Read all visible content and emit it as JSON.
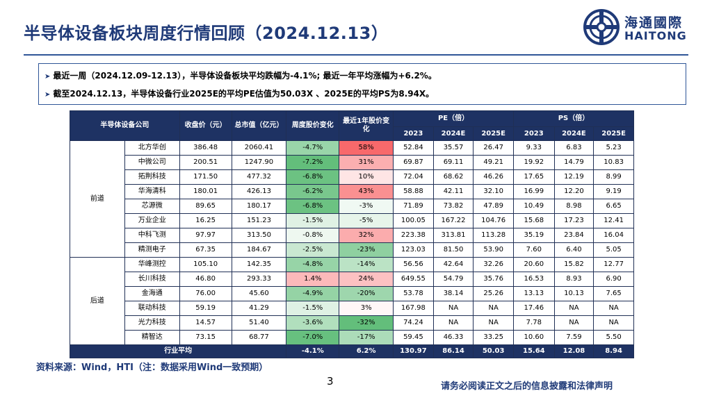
{
  "title": "半导体设备板块周度行情回顾（2024.12.13）",
  "logo": {
    "cn": "海通國際",
    "en": "HAITONG"
  },
  "summary": [
    "最近一周（2024.12.09-12.13），半导体设备板块平均跌幅为-4.1%;  最近一年平均涨幅为+6.2%。",
    "截至2024.12.13，半导体设备行业2025E的平均PE估值为50.03X 、2025E的平均PS为8.94X。"
  ],
  "table": {
    "header": {
      "company": "半导体设备公司",
      "close": "收盘价（元）",
      "mcap": "总市值（亿元）",
      "week_chg": "周度股价变化",
      "year_chg": "最近1年股价变化",
      "pe": "PE（倍）",
      "ps": "PS（倍）",
      "years": [
        "2023",
        "2024E",
        "2025E"
      ]
    },
    "groups": [
      {
        "name": "前道",
        "rows": [
          {
            "company": "北方华创",
            "close": "386.48",
            "mcap": "2060.41",
            "week": "-4.7%",
            "year": "58%",
            "pe": [
              "52.84",
              "35.57",
              "26.47"
            ],
            "ps": [
              "9.33",
              "6.83",
              "5.23"
            ]
          },
          {
            "company": "中微公司",
            "close": "200.51",
            "mcap": "1247.90",
            "week": "-7.2%",
            "year": "31%",
            "pe": [
              "69.87",
              "69.11",
              "49.21"
            ],
            "ps": [
              "19.92",
              "14.79",
              "10.83"
            ]
          },
          {
            "company": "拓荆科技",
            "close": "171.50",
            "mcap": "477.32",
            "week": "-6.8%",
            "year": "10%",
            "pe": [
              "72.04",
              "68.62",
              "46.26"
            ],
            "ps": [
              "17.65",
              "12.19",
              "8.99"
            ]
          },
          {
            "company": "华海清科",
            "close": "180.01",
            "mcap": "426.13",
            "week": "-6.2%",
            "year": "43%",
            "pe": [
              "58.88",
              "42.11",
              "32.10"
            ],
            "ps": [
              "16.99",
              "12.20",
              "9.19"
            ]
          },
          {
            "company": "芯源微",
            "close": "89.65",
            "mcap": "180.17",
            "week": "-6.8%",
            "year": "-3%",
            "pe": [
              "71.89",
              "73.82",
              "47.89"
            ],
            "ps": [
              "10.49",
              "8.98",
              "6.65"
            ]
          },
          {
            "company": "万业企业",
            "close": "16.25",
            "mcap": "151.23",
            "week": "-1.5%",
            "year": "-5%",
            "pe": [
              "100.05",
              "167.22",
              "104.76"
            ],
            "ps": [
              "15.68",
              "17.23",
              "12.41"
            ]
          },
          {
            "company": "中科飞测",
            "close": "97.97",
            "mcap": "313.50",
            "week": "-0.8%",
            "year": "32%",
            "pe": [
              "223.38",
              "313.81",
              "113.28"
            ],
            "ps": [
              "35.19",
              "23.84",
              "16.04"
            ]
          },
          {
            "company": "精测电子",
            "close": "67.35",
            "mcap": "184.67",
            "week": "-2.5%",
            "year": "-23%",
            "pe": [
              "123.03",
              "81.50",
              "53.90"
            ],
            "ps": [
              "7.60",
              "6.40",
              "5.05"
            ]
          }
        ]
      },
      {
        "name": "后道",
        "rows": [
          {
            "company": "华峰测控",
            "close": "105.10",
            "mcap": "142.35",
            "week": "-4.8%",
            "year": "-14%",
            "pe": [
              "56.56",
              "42.64",
              "32.26"
            ],
            "ps": [
              "20.60",
              "15.82",
              "12.77"
            ]
          },
          {
            "company": "长川科技",
            "close": "46.80",
            "mcap": "293.33",
            "week": "1.4%",
            "year": "24%",
            "pe": [
              "649.55",
              "54.79",
              "35.76"
            ],
            "ps": [
              "16.53",
              "8.93",
              "6.90"
            ]
          },
          {
            "company": "金海通",
            "close": "76.00",
            "mcap": "45.60",
            "week": "-4.9%",
            "year": "-20%",
            "pe": [
              "53.78",
              "38.14",
              "25.26"
            ],
            "ps": [
              "13.13",
              "10.13",
              "7.65"
            ]
          },
          {
            "company": "联动科技",
            "close": "59.19",
            "mcap": "41.29",
            "week": "-1.5%",
            "year": "3%",
            "pe": [
              "167.98",
              "NA",
              "NA"
            ],
            "ps": [
              "17.46",
              "NA",
              "NA"
            ]
          },
          {
            "company": "光力科技",
            "close": "14.57",
            "mcap": "51.40",
            "week": "-3.6%",
            "year": "-32%",
            "pe": [
              "74.24",
              "NA",
              "NA"
            ],
            "ps": [
              "7.78",
              "NA",
              "NA"
            ]
          },
          {
            "company": "精智达",
            "close": "73.15",
            "mcap": "68.77",
            "week": "-7.0%",
            "year": "-17%",
            "pe": [
              "59.45",
              "46.33",
              "33.25"
            ],
            "ps": [
              "10.60",
              "7.59",
              "5.50"
            ]
          }
        ]
      }
    ],
    "average": {
      "label": "行业平均",
      "week": "-4.1%",
      "year": "6.2%",
      "pe": [
        "130.97",
        "86.14",
        "50.03"
      ],
      "ps": [
        "15.64",
        "12.08",
        "8.94"
      ]
    }
  },
  "source": "资料来源：Wind，HTI（注：数据采用Wind一致预期）",
  "page_number": "3",
  "disclaimer": "请务必阅读正文之后的信息披露和法律声明",
  "colors": {
    "brand_blue": "#1f3a78",
    "header_bg": "#1e3263",
    "neg_strong": "#63be7b",
    "pos_strong": "#f8696b"
  }
}
